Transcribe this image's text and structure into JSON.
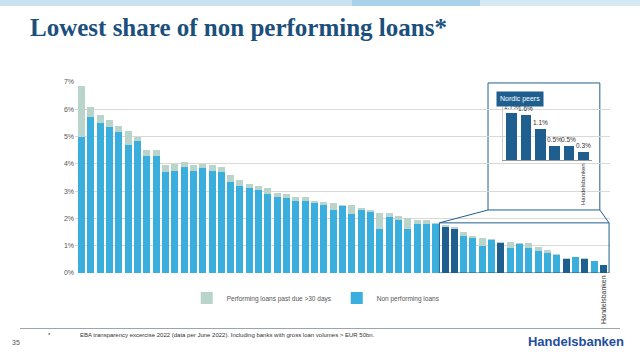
{
  "title": "Lowest share of non performing loans*",
  "footnote": {
    "marker": "*",
    "text": "EBA transparency excercise 2022 (data per June 2022). Including banks with gross loan volumes > EUR 50bn."
  },
  "page_number": "35",
  "logo": "Handelsbanken",
  "chart_data": [
    {
      "type": "bar",
      "stacked": true,
      "categories": [
        null,
        null,
        null,
        null,
        null,
        null,
        null,
        null,
        null,
        null,
        null,
        null,
        null,
        null,
        null,
        null,
        null,
        null,
        null,
        null,
        null,
        null,
        null,
        null,
        null,
        null,
        null,
        null,
        null,
        null,
        null,
        null,
        null,
        null,
        null,
        null,
        null,
        null,
        null,
        null,
        null,
        null,
        null,
        null,
        null,
        null,
        null,
        null,
        null,
        null,
        null,
        null,
        null,
        null,
        null,
        null,
        "Handelsbanken"
      ],
      "series": [
        {
          "name": "Non performing loans",
          "color": "#3aaedc",
          "colors": [
            "#3aaedc",
            "#3aaedc",
            "#3aaedc",
            "#3aaedc",
            "#3aaedc",
            "#3aaedc",
            "#3aaedc",
            "#3aaedc",
            "#3aaedc",
            "#3aaedc",
            "#3aaedc",
            "#3aaedc",
            "#3aaedc",
            "#3aaedc",
            "#3aaedc",
            "#3aaedc",
            "#3aaedc",
            "#3aaedc",
            "#3aaedc",
            "#3aaedc",
            "#3aaedc",
            "#3aaedc",
            "#3aaedc",
            "#3aaedc",
            "#3aaedc",
            "#3aaedc",
            "#3aaedc",
            "#3aaedc",
            "#3aaedc",
            "#3aaedc",
            "#3aaedc",
            "#3aaedc",
            "#3aaedc",
            "#3aaedc",
            "#3aaedc",
            "#3aaedc",
            "#3aaedc",
            "#3aaedc",
            "#3aaedc",
            "#1f5f8f",
            "#1f5f8f",
            "#3aaedc",
            "#3aaedc",
            "#3aaedc",
            "#3aaedc",
            "#1f5f8f",
            "#3aaedc",
            "#3aaedc",
            "#3aaedc",
            "#3aaedc",
            "#3aaedc",
            "#3aaedc",
            "#1f5f8f",
            "#3aaedc",
            "#1f5f8f",
            "#3aaedc",
            "#1f5f8f"
          ],
          "values": [
            5.0,
            5.7,
            5.5,
            5.35,
            5.15,
            4.7,
            4.85,
            4.3,
            4.3,
            3.7,
            3.75,
            3.9,
            3.75,
            3.85,
            3.75,
            3.7,
            3.35,
            3.2,
            3.1,
            3.05,
            2.9,
            2.8,
            2.75,
            2.65,
            2.65,
            2.55,
            2.5,
            2.3,
            2.45,
            2.15,
            2.3,
            2.25,
            1.6,
            2.05,
            1.95,
            1.6,
            1.8,
            1.8,
            1.8,
            1.7,
            1.6,
            1.35,
            1.3,
            1.0,
            1.2,
            1.1,
            0.9,
            1.05,
            0.9,
            0.8,
            0.75,
            0.65,
            0.5,
            0.6,
            0.5,
            0.45,
            0.3
          ]
        },
        {
          "name": "Performing loans past due >30 days",
          "color": "#b9d5cb",
          "values": [
            1.85,
            0.4,
            0.3,
            0.25,
            0.25,
            0.5,
            0.15,
            0.2,
            0.2,
            0.25,
            0.25,
            0.15,
            0.2,
            0.15,
            0.2,
            0.2,
            0.25,
            0.2,
            0.15,
            0.15,
            0.2,
            0.15,
            0.15,
            0.15,
            0.15,
            0.1,
            0.1,
            0.25,
            0.05,
            0.35,
            0.1,
            0.05,
            0.6,
            0.15,
            0.15,
            0.4,
            0.15,
            0.15,
            0.05,
            0.05,
            0.1,
            0.15,
            0.05,
            0.3,
            0.05,
            0.05,
            0.25,
            0.05,
            0.2,
            0.15,
            0.1,
            0.05,
            0.05,
            0,
            0.05,
            0,
            0
          ]
        }
      ],
      "ylim": [
        0,
        7
      ],
      "yticks": [
        {
          "value": 0,
          "label": "0%"
        },
        {
          "value": 1,
          "label": "1%"
        },
        {
          "value": 2,
          "label": "2%"
        },
        {
          "value": 3,
          "label": "3%"
        },
        {
          "value": 4,
          "label": "4%"
        },
        {
          "value": 5,
          "label": "5%"
        },
        {
          "value": 6,
          "label": "6%"
        },
        {
          "value": 7,
          "label": "7%"
        }
      ],
      "grid": true,
      "legend": "bottom"
    },
    {
      "type": "bar",
      "title": "Nordic peers",
      "categories": [
        null,
        null,
        null,
        null,
        null,
        "Handelsbanken"
      ],
      "values": [
        1.7,
        1.6,
        1.1,
        0.5,
        0.5,
        0.3
      ],
      "value_labels": [
        "1.7%",
        "1.6%",
        "1.1%",
        "0.5%",
        "0.5%",
        "0.3%"
      ],
      "data_labels": true,
      "color": "#1f5f8f",
      "ylim": [
        0,
        1.9
      ],
      "tick_labels": "x",
      "grid": false
    }
  ]
}
